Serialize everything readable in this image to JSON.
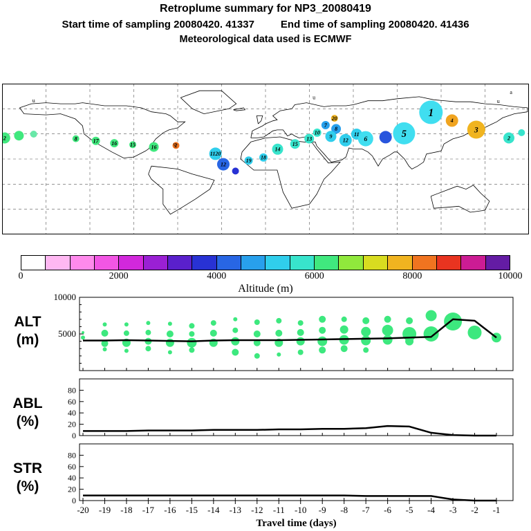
{
  "header": {
    "title": "Retroplume summary for NP3_20080419",
    "start_label": "Start time of sampling 20080420. 41337",
    "end_label": "End time of sampling 20080420. 41436",
    "met_line": "Meteorological data used is ECMWF"
  },
  "colorbar": {
    "label": "Altitude (m)",
    "ticks": [
      "0",
      "2000",
      "4000",
      "6000",
      "8000",
      "10000"
    ],
    "colors": [
      "#ffffff",
      "#ffb8f2",
      "#ff8aec",
      "#f256e4",
      "#d228dc",
      "#9a20d4",
      "#5a20cc",
      "#2832d4",
      "#2866e4",
      "#28a0ec",
      "#30ceec",
      "#38e4cc",
      "#40e87e",
      "#90e83c",
      "#d8dc20",
      "#f0b420",
      "#f07420",
      "#e83420",
      "#cc1c94",
      "#641ca4"
    ]
  },
  "map": {
    "bubbles": [
      {
        "x": 0.5,
        "y": 36,
        "r": 8,
        "c": "#40e87e",
        "label": "2"
      },
      {
        "x": 3.2,
        "y": 34.5,
        "r": 7,
        "c": "#40e87e",
        "label": ""
      },
      {
        "x": 6.0,
        "y": 33.5,
        "r": 5,
        "c": "#69e8a8",
        "label": ""
      },
      {
        "x": 14.0,
        "y": 36.5,
        "r": 5,
        "c": "#40e87e",
        "label": "8"
      },
      {
        "x": 17.8,
        "y": 38.0,
        "r": 6,
        "c": "#40e87e",
        "label": "17"
      },
      {
        "x": 21.3,
        "y": 39.5,
        "r": 6,
        "c": "#40e87e",
        "label": "16"
      },
      {
        "x": 24.8,
        "y": 40.5,
        "r": 5,
        "c": "#40e87e",
        "label": "15"
      },
      {
        "x": 28.8,
        "y": 42.0,
        "r": 7,
        "c": "#40e87e",
        "label": "16"
      },
      {
        "x": 33.0,
        "y": 41.0,
        "r": 5,
        "c": "#f07420",
        "label": "2"
      },
      {
        "x": 40.5,
        "y": 46.5,
        "r": 9,
        "c": "#30ceec",
        "label": "1120"
      },
      {
        "x": 42.0,
        "y": 53.5,
        "r": 9,
        "c": "#2866e4",
        "label": "12"
      },
      {
        "x": 44.3,
        "y": 58.0,
        "r": 5,
        "c": "#2832d4",
        "label": ""
      },
      {
        "x": 46.8,
        "y": 51.0,
        "r": 6,
        "c": "#30ceec",
        "label": "19"
      },
      {
        "x": 49.6,
        "y": 49.0,
        "r": 6,
        "c": "#30ceec",
        "label": "18"
      },
      {
        "x": 52.3,
        "y": 43.5,
        "r": 8,
        "c": "#38e4cc",
        "label": "14"
      },
      {
        "x": 55.6,
        "y": 40.0,
        "r": 7,
        "c": "#38e4cc",
        "label": "15"
      },
      {
        "x": 58.3,
        "y": 36.5,
        "r": 7,
        "c": "#38e4cc",
        "label": "13"
      },
      {
        "x": 59.8,
        "y": 32.5,
        "r": 6,
        "c": "#38e4cc",
        "label": "10"
      },
      {
        "x": 61.4,
        "y": 27.5,
        "r": 6,
        "c": "#28a0ec",
        "label": "7"
      },
      {
        "x": 63.4,
        "y": 30.0,
        "r": 7,
        "c": "#28a0ec",
        "label": "8"
      },
      {
        "x": 62.4,
        "y": 35.0,
        "r": 8,
        "c": "#30ceec",
        "label": "9"
      },
      {
        "x": 65.2,
        "y": 37.5,
        "r": 9,
        "c": "#30ceec",
        "label": "12"
      },
      {
        "x": 67.3,
        "y": 33.5,
        "r": 8,
        "c": "#30ceec",
        "label": "11"
      },
      {
        "x": 63.1,
        "y": 23.0,
        "r": 5,
        "c": "#f0b420",
        "label": "20"
      },
      {
        "x": 69.0,
        "y": 36.5,
        "r": 11,
        "c": "#40def0",
        "label": "6"
      },
      {
        "x": 72.8,
        "y": 35.5,
        "r": 9,
        "c": "#2855dd",
        "label": ""
      },
      {
        "x": 76.3,
        "y": 33.0,
        "r": 16,
        "c": "#40def0",
        "label": "5"
      },
      {
        "x": 81.4,
        "y": 19.0,
        "r": 17,
        "c": "#40def0",
        "label": "1"
      },
      {
        "x": 85.4,
        "y": 24.5,
        "r": 9,
        "c": "#f0a420",
        "label": "4"
      },
      {
        "x": 90.0,
        "y": 30.5,
        "r": 13,
        "c": "#f0b420",
        "label": "3"
      },
      {
        "x": 96.2,
        "y": 36.0,
        "r": 8,
        "c": "#38e4cc",
        "label": "2"
      },
      {
        "x": 98.6,
        "y": 32.5,
        "r": 5,
        "c": "#38e4cc",
        "label": ""
      }
    ],
    "letter_markers": [
      {
        "x": 6.0,
        "y": 11.0,
        "label": "u"
      },
      {
        "x": 32.8,
        "y": 40.0,
        "label": "u"
      },
      {
        "x": 59.2,
        "y": 9.0,
        "label": "u"
      },
      {
        "x": 94.2,
        "y": 11.5,
        "label": "u"
      },
      {
        "x": 96.6,
        "y": 5.5,
        "label": "a"
      }
    ]
  },
  "chart_data": [
    {
      "type": "scatter",
      "name": "ALT",
      "panel_label": [
        "ALT",
        "(m)"
      ],
      "ylim": [
        0,
        10000
      ],
      "yticks": [
        5000,
        10000
      ],
      "bubble_color": "#3de87e",
      "x": [
        -20,
        -19,
        -18,
        -17,
        -16,
        -15,
        -14,
        -13,
        -12,
        -11,
        -10,
        -9,
        -8,
        -7,
        -6,
        -5,
        -4,
        -3,
        -2,
        -1
      ],
      "line_values": [
        4100,
        4100,
        4150,
        4100,
        4050,
        4000,
        4100,
        4150,
        4150,
        4150,
        4200,
        4250,
        4300,
        4350,
        4400,
        4500,
        4600,
        7000,
        6800,
        4500
      ],
      "bubbles": [
        [
          -20,
          5200,
          2
        ],
        [
          -20,
          4500,
          3
        ],
        [
          -19,
          6300,
          3
        ],
        [
          -19,
          5100,
          5
        ],
        [
          -19,
          3700,
          5
        ],
        [
          -19,
          2900,
          3
        ],
        [
          -18,
          6300,
          3
        ],
        [
          -18,
          5100,
          4
        ],
        [
          -18,
          3800,
          6
        ],
        [
          -18,
          2700,
          3
        ],
        [
          -17,
          6500,
          3
        ],
        [
          -17,
          5200,
          4
        ],
        [
          -17,
          4000,
          5
        ],
        [
          -17,
          3000,
          4
        ],
        [
          -16,
          6400,
          3
        ],
        [
          -16,
          5000,
          5
        ],
        [
          -16,
          3800,
          6
        ],
        [
          -16,
          2500,
          3
        ],
        [
          -15,
          6100,
          4
        ],
        [
          -15,
          5000,
          4
        ],
        [
          -15,
          3800,
          7
        ],
        [
          -15,
          2800,
          4
        ],
        [
          -14,
          6500,
          4
        ],
        [
          -14,
          5100,
          5
        ],
        [
          -14,
          3800,
          6
        ],
        [
          -13,
          7000,
          3
        ],
        [
          -13,
          5500,
          4
        ],
        [
          -13,
          4000,
          6
        ],
        [
          -13,
          2500,
          5
        ],
        [
          -12,
          6600,
          4
        ],
        [
          -12,
          5000,
          5
        ],
        [
          -12,
          3800,
          5
        ],
        [
          -12,
          2000,
          4
        ],
        [
          -11,
          6800,
          4
        ],
        [
          -11,
          5100,
          5
        ],
        [
          -11,
          3800,
          6
        ],
        [
          -11,
          2200,
          3
        ],
        [
          -10,
          6500,
          4
        ],
        [
          -10,
          5200,
          5
        ],
        [
          -10,
          4000,
          6
        ],
        [
          -10,
          2500,
          4
        ],
        [
          -9,
          7000,
          5
        ],
        [
          -9,
          5500,
          5
        ],
        [
          -9,
          4000,
          7
        ],
        [
          -9,
          2800,
          5
        ],
        [
          -8,
          7000,
          4
        ],
        [
          -8,
          5600,
          6
        ],
        [
          -8,
          4200,
          7
        ],
        [
          -8,
          3000,
          5
        ],
        [
          -7,
          6800,
          5
        ],
        [
          -7,
          5300,
          7
        ],
        [
          -7,
          4100,
          7
        ],
        [
          -7,
          2800,
          4
        ],
        [
          -6,
          7000,
          5
        ],
        [
          -6,
          5500,
          8
        ],
        [
          -6,
          4200,
          7
        ],
        [
          -5,
          6800,
          5
        ],
        [
          -5,
          5000,
          10
        ],
        [
          -5,
          4000,
          6
        ],
        [
          -4,
          7500,
          8
        ],
        [
          -4,
          5000,
          11
        ],
        [
          -3,
          6700,
          13
        ],
        [
          -2,
          5200,
          10
        ],
        [
          -1,
          4500,
          7
        ]
      ]
    },
    {
      "type": "line",
      "name": "ABL",
      "panel_label": [
        "ABL",
        "(%)"
      ],
      "ylim": [
        0,
        100
      ],
      "yticks": [
        0,
        20,
        40,
        60,
        80
      ],
      "x": [
        -20,
        -19,
        -18,
        -17,
        -16,
        -15,
        -14,
        -13,
        -12,
        -11,
        -10,
        -9,
        -8,
        -7,
        -6,
        -5,
        -4,
        -3,
        -2,
        -1
      ],
      "values": [
        8,
        8,
        8,
        9,
        9,
        9,
        10,
        10,
        10,
        11,
        11,
        12,
        12,
        13,
        17,
        16,
        5,
        1,
        0,
        0
      ]
    },
    {
      "type": "line",
      "name": "STR",
      "panel_label": [
        "STR",
        "(%)"
      ],
      "ylim": [
        0,
        100
      ],
      "yticks": [
        0,
        20,
        40,
        60,
        80
      ],
      "x": [
        -20,
        -19,
        -18,
        -17,
        -16,
        -15,
        -14,
        -13,
        -12,
        -11,
        -10,
        -9,
        -8,
        -7,
        -6,
        -5,
        -4,
        -3,
        -2,
        -1
      ],
      "values": [
        9,
        9,
        9,
        9,
        9,
        9,
        9,
        9,
        9,
        9,
        9,
        9,
        9,
        8,
        8,
        8,
        8,
        2,
        0,
        0
      ]
    }
  ],
  "xaxis": {
    "label": "Travel time (days)",
    "ticks": [
      -20,
      -19,
      -18,
      -17,
      -16,
      -15,
      -14,
      -13,
      -12,
      -11,
      -10,
      -9,
      -8,
      -7,
      -6,
      -5,
      -4,
      -3,
      -2,
      -1
    ]
  }
}
